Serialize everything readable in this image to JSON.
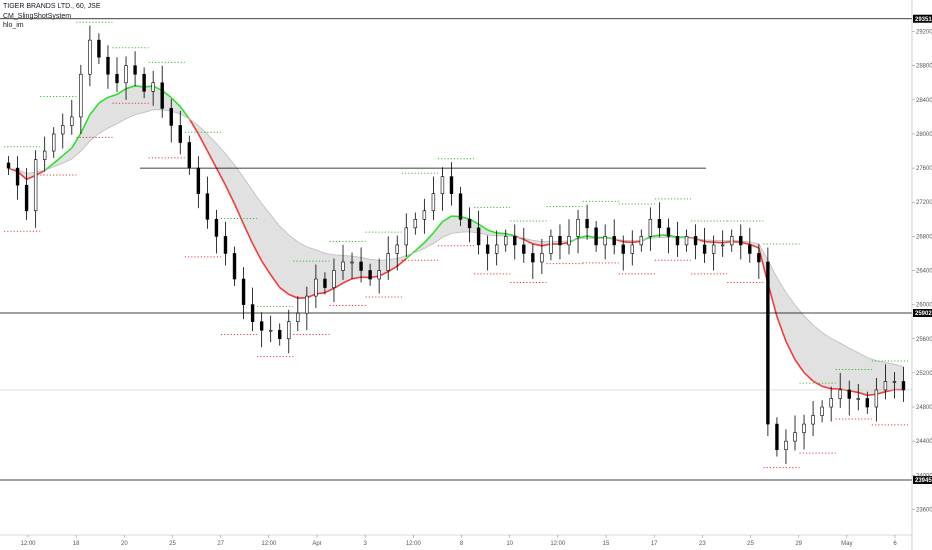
{
  "legend": {
    "symbol_line": "TIGER BRANDS LTD., 60, JSE",
    "indicator_1": "CM_SlingShotSystem",
    "indicator_2": "hlo_im"
  },
  "colors": {
    "candle": "#000000",
    "ema_fast_up": "#2ee02e",
    "ema_fast_down": "#f23b3b",
    "ema_slow": "#bdbdbd",
    "band_fill": "#d9d9d9",
    "hi_dots": "#2ec02e",
    "lo_dots": "#e63a3a",
    "hline": "#000000",
    "label_bg": "#000000",
    "grid": "#eeeeee"
  },
  "chart_data": {
    "type": "candlestick",
    "title": "TIGER BRANDS LTD., 60, JSE",
    "ylim": [
      23300,
      29500
    ],
    "y_ticks": [
      23600,
      24000,
      24400,
      24800,
      25200,
      25600,
      26000,
      26400,
      26800,
      27200,
      27600,
      28000,
      28400,
      28800,
      29200
    ],
    "x_ticks": [
      "12:00",
      "18",
      "20",
      "25",
      "27",
      "12:00",
      "Apr",
      "3",
      "12:00",
      "8",
      "10",
      "12:00",
      "15",
      "17",
      "23",
      "25",
      "29",
      "May",
      "6"
    ],
    "horizontal_lines": [
      {
        "value": 29351,
        "label": "29351",
        "labeled": true
      },
      {
        "value": 27600,
        "label": "",
        "labeled": false
      },
      {
        "value": 25902,
        "label": "25902",
        "labeled": true
      },
      {
        "value": 25000,
        "label": "",
        "labeled": false
      },
      {
        "value": 23945,
        "label": "23945",
        "labeled": true
      }
    ],
    "close_path": [
      27600,
      27400,
      27100,
      27700,
      27800,
      28000,
      28100,
      28200,
      28700,
      29100,
      28900,
      28700,
      28600,
      28800,
      28700,
      28500,
      28600,
      28300,
      28100,
      27900,
      27600,
      27300,
      27000,
      26800,
      26600,
      26300,
      26000,
      25800,
      25700,
      25700,
      25600,
      25800,
      25900,
      26100,
      26300,
      26200,
      26400,
      26500,
      26500,
      26400,
      26300,
      26400,
      26600,
      26700,
      26900,
      27000,
      27100,
      27300,
      27500,
      27300,
      27000,
      26900,
      26700,
      26600,
      26700,
      26800,
      26700,
      26600,
      26500,
      26600,
      26800,
      26700,
      26800,
      27000,
      26900,
      26700,
      26800,
      26700,
      26600,
      26700,
      26800,
      27000,
      26900,
      26800,
      26700,
      26800,
      26700,
      26600,
      26700,
      26700,
      26800,
      26700,
      26600,
      26500,
      24600,
      24300,
      24400,
      24500,
      24600,
      24700,
      24800,
      24900,
      25000,
      24900,
      24900,
      24800,
      25000,
      25100,
      25100,
      25000
    ]
  }
}
